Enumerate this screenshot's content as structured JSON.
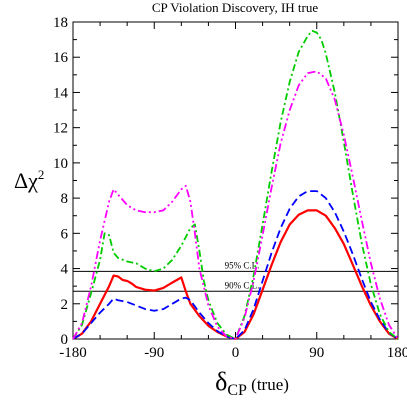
{
  "chart_data": {
    "type": "line",
    "title": "CP Violation Discovery, IH true",
    "xlabel": {
      "main": "δ",
      "sub": "CP",
      "suffix": " (true)"
    },
    "ylabel": {
      "main": "Δχ",
      "sup": "2"
    },
    "xlim": [
      -180,
      180
    ],
    "ylim": [
      0,
      18
    ],
    "xticks": [
      -180,
      -90,
      0,
      90,
      180
    ],
    "yticks": [
      0,
      2,
      4,
      6,
      8,
      10,
      12,
      14,
      16,
      18
    ],
    "grid": false,
    "reference_lines": [
      {
        "label": "95% C.L.",
        "y": 3.84
      },
      {
        "label": "90% C.L.",
        "y": 2.71
      }
    ],
    "series": [
      {
        "color": "#ff0000",
        "style": "solid",
        "x": [
          -180,
          -170,
          -160,
          -150,
          -140,
          -135,
          -130,
          -125,
          -120,
          -115,
          -110,
          -100,
          -90,
          -80,
          -70,
          -65,
          -60,
          -55,
          -50,
          -40,
          -30,
          -20,
          -10,
          0,
          10,
          20,
          30,
          40,
          50,
          60,
          70,
          80,
          90,
          100,
          110,
          120,
          130,
          140,
          150,
          160,
          170,
          180
        ],
        "y": [
          0,
          0.3,
          1.0,
          2.0,
          3.0,
          3.6,
          3.55,
          3.35,
          3.3,
          3.15,
          2.95,
          2.8,
          2.75,
          2.9,
          3.2,
          3.35,
          3.5,
          2.7,
          2.0,
          1.3,
          0.75,
          0.4,
          0.15,
          0,
          0.4,
          1.4,
          2.8,
          4.2,
          5.5,
          6.5,
          7.05,
          7.3,
          7.3,
          7.0,
          6.3,
          5.4,
          4.2,
          3.0,
          1.9,
          1.0,
          0.3,
          0
        ]
      },
      {
        "color": "#0000ff",
        "style": "dashed",
        "x": [
          -180,
          -170,
          -160,
          -150,
          -140,
          -135,
          -130,
          -120,
          -110,
          -100,
          -90,
          -80,
          -70,
          -60,
          -55,
          -50,
          -40,
          -30,
          -20,
          -10,
          0,
          10,
          20,
          30,
          40,
          50,
          60,
          70,
          80,
          90,
          100,
          110,
          120,
          130,
          140,
          150,
          160,
          170,
          180
        ],
        "y": [
          0,
          0.3,
          0.9,
          1.5,
          2.0,
          2.3,
          2.2,
          2.1,
          1.9,
          1.7,
          1.6,
          1.7,
          2.0,
          2.3,
          2.35,
          2.2,
          1.5,
          0.9,
          0.45,
          0.15,
          0,
          0.5,
          1.7,
          3.3,
          4.9,
          6.3,
          7.4,
          8.1,
          8.4,
          8.4,
          8.0,
          7.2,
          6.1,
          4.8,
          3.4,
          2.1,
          1.1,
          0.35,
          0
        ]
      },
      {
        "color": "#00cc00",
        "style": "dash-dot",
        "x": [
          -180,
          -170,
          -160,
          -150,
          -145,
          -140,
          -135,
          -130,
          -120,
          -110,
          -100,
          -90,
          -80,
          -70,
          -60,
          -50,
          -45,
          -40,
          -35,
          -30,
          -20,
          -10,
          0,
          10,
          20,
          30,
          40,
          50,
          60,
          70,
          80,
          85,
          90,
          95,
          100,
          110,
          120,
          130,
          140,
          150,
          160,
          170,
          180
        ],
        "y": [
          0,
          0.8,
          2.6,
          4.5,
          6.0,
          5.9,
          4.9,
          4.6,
          4.4,
          4.3,
          4.0,
          3.85,
          4.0,
          4.5,
          5.3,
          6.3,
          6.5,
          5.0,
          3.3,
          2.2,
          0.9,
          0.25,
          0,
          1.3,
          3.6,
          6.5,
          9.5,
          12.3,
          14.6,
          16.3,
          17.2,
          17.5,
          17.4,
          17.0,
          16.2,
          14.0,
          11.2,
          8.2,
          5.4,
          3.1,
          1.4,
          0.4,
          0
        ]
      },
      {
        "color": "#ff00ff",
        "style": "dash-dot-dot",
        "x": [
          -180,
          -170,
          -160,
          -150,
          -140,
          -135,
          -130,
          -120,
          -110,
          -100,
          -90,
          -80,
          -70,
          -60,
          -55,
          -50,
          -45,
          -40,
          -30,
          -20,
          -10,
          0,
          10,
          20,
          30,
          40,
          50,
          60,
          70,
          80,
          90,
          100,
          110,
          120,
          130,
          140,
          150,
          160,
          170,
          180
        ],
        "y": [
          0,
          0.9,
          3.0,
          5.6,
          7.8,
          8.5,
          8.2,
          7.6,
          7.3,
          7.2,
          7.2,
          7.3,
          7.8,
          8.5,
          8.7,
          7.8,
          6.0,
          4.0,
          1.9,
          0.7,
          0.15,
          0,
          1.2,
          3.3,
          5.9,
          8.6,
          11.1,
          13.0,
          14.4,
          15.1,
          15.2,
          14.8,
          13.6,
          11.6,
          9.2,
          6.7,
          4.3,
          2.3,
          0.8,
          0
        ]
      }
    ]
  }
}
